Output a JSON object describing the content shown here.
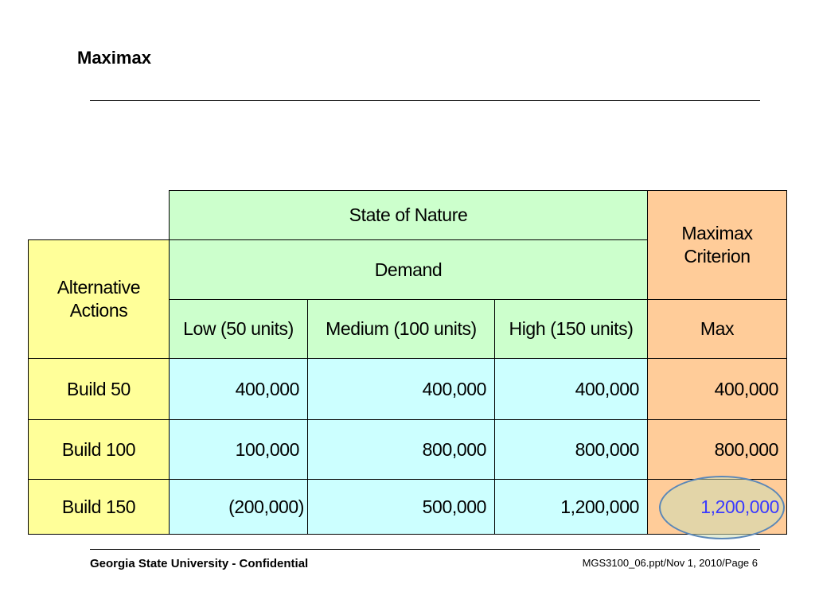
{
  "slide": {
    "title": "Maximax"
  },
  "table": {
    "state_of_nature": "State of Nature",
    "demand": "Demand",
    "criterion_header": "Maximax Criterion",
    "alternative_actions": "Alternative Actions",
    "columns": [
      "Low (50 units)",
      "Medium (100 units)",
      "High (150 units)",
      "Max"
    ],
    "rows": [
      {
        "action": "Build 50",
        "values": [
          "400,000",
          "400,000",
          "400,000",
          "400,000"
        ]
      },
      {
        "action": "Build 100",
        "values": [
          "100,000",
          "800,000",
          "800,000",
          "800,000"
        ]
      },
      {
        "action": "Build 150",
        "values": [
          "(200,000)",
          "500,000",
          "1,200,000",
          "1,200,000"
        ]
      }
    ],
    "highlight_color": "#3a3aff"
  },
  "footer": {
    "left": "Georgia State University - Confidential",
    "right": "MGS3100_06.ppt/Nov 1, 2010/Page 6"
  }
}
